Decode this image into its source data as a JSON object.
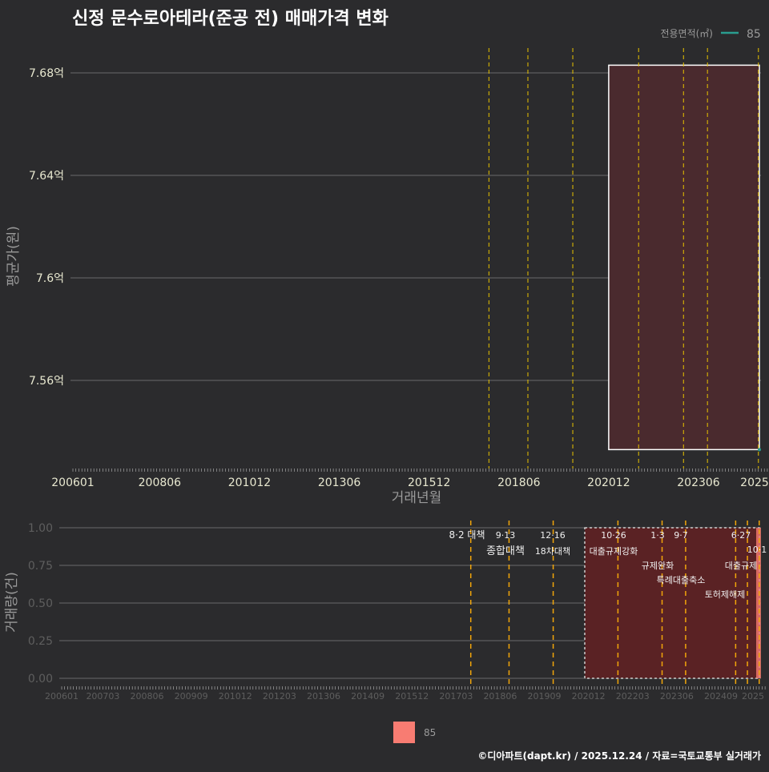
{
  "title": "신정 문수로아테라(준공 전) 매매가격 변화",
  "credit": "©디아파트(dapt.kr) / 2025.12.24 / 자료=국토교통부 실거래가",
  "colors": {
    "bg": "#2b2b2d",
    "series": "#2a9d8f",
    "bar": "#f87c72",
    "event": "#e5c000",
    "event2": "#f2a60a",
    "rect": "#4a2a2e",
    "rect2": "#5a2224"
  },
  "chart_data": [
    {
      "type": "scatter",
      "title": "신정 문수로아테라(준공 전) 매매가격 변화",
      "xlabel": "거래년월",
      "ylabel": "평균가(원)",
      "x_ticks": [
        "200601",
        "200806",
        "201012",
        "201306",
        "201512",
        "201806",
        "202012",
        "202306",
        "2025"
      ],
      "y_ticks": [
        "7.56억",
        "7.6억",
        "7.64억",
        "7.68억"
      ],
      "y_tick_values": [
        7.56,
        7.6,
        7.64,
        7.68
      ],
      "ylim": [
        7.53,
        7.69
      ],
      "legend": {
        "title": "전용면적(㎡)",
        "entries": [
          "85"
        ],
        "position": "top-right"
      },
      "series": [
        {
          "name": "85",
          "points": [
            {
              "x": "202512",
              "y": 7.533
            }
          ]
        }
      ],
      "highlight_range": {
        "x": [
          "202012",
          "202512"
        ],
        "y": [
          7.533,
          7.683
        ]
      },
      "event_months": [
        "201708",
        "201809",
        "201912",
        "202110",
        "202301",
        "202309",
        "202502",
        "202506",
        "202510"
      ]
    },
    {
      "type": "bar",
      "xlabel": "",
      "ylabel": "거래량(건)",
      "x_ticks": [
        "200601",
        "200703",
        "200806",
        "200909",
        "201012",
        "201203",
        "201306",
        "201409",
        "201512",
        "201703",
        "201806",
        "201909",
        "202012",
        "202203",
        "202306",
        "202409",
        "2025"
      ],
      "y_ticks": [
        "0.00",
        "0.25",
        "0.50",
        "0.75",
        "1.00"
      ],
      "y_tick_values": [
        0,
        0.25,
        0.5,
        0.75,
        1
      ],
      "ylim": [
        0,
        1
      ],
      "legend": {
        "entries": [
          "85"
        ],
        "position": "bottom"
      },
      "series": [
        {
          "name": "85",
          "values": [
            {
              "x": "202512",
              "y": 1
            }
          ]
        }
      ],
      "events": [
        {
          "date": "8·2 대책",
          "label": "",
          "month": "201708"
        },
        {
          "date": "9·13",
          "label": "종합대책",
          "month": "201809"
        },
        {
          "date": "12·16",
          "label": "18차대책",
          "month": "201912"
        },
        {
          "date": "10·26",
          "label": "대출규제강화",
          "month": "202110"
        },
        {
          "date": "1·3",
          "label": "규제완화",
          "month": "202301"
        },
        {
          "date": "9·7",
          "label": "특례대출축소",
          "month": "202309"
        },
        {
          "date": "",
          "label": "토허제해제",
          "month": "202502"
        },
        {
          "date": "6·27",
          "label": "대출규제",
          "month": "202506"
        },
        {
          "date": "10·1",
          "label": "",
          "month": "202510"
        }
      ]
    }
  ]
}
